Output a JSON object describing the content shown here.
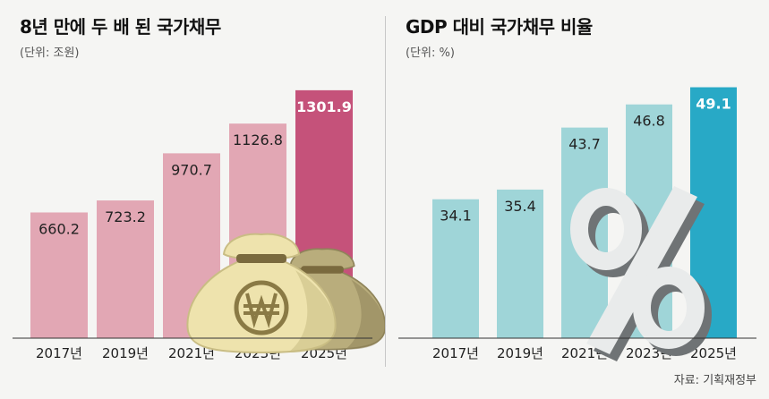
{
  "chart_data": [
    {
      "type": "bar",
      "title": "8년 만에 두 배 된 국가채무",
      "unit": "(단위: 조원)",
      "categories": [
        "2017년",
        "2019년",
        "2021년",
        "2023년",
        "2025년"
      ],
      "values": [
        660.2,
        723.2,
        970.7,
        1126.8,
        1301.9
      ],
      "ylim": [
        0,
        1400
      ],
      "grid": false,
      "legend": "none",
      "colors": {
        "bar": "#e2a7b4",
        "highlight": "#c5527a",
        "label": "#222222",
        "highlight_label": "#ffffff"
      },
      "decoration": "money-bags-icon"
    },
    {
      "type": "bar",
      "title": "GDP 대비 국가채무 비율",
      "unit": "(단위: %)",
      "categories": [
        "2017년",
        "2019년",
        "2021년",
        "2023년",
        "2025년"
      ],
      "values": [
        34.1,
        35.4,
        43.7,
        46.8,
        49.1
      ],
      "ylim": [
        15.5,
        51.2
      ],
      "grid": false,
      "legend": "none",
      "colors": {
        "bar": "#9fd5d8",
        "highlight": "#28a9c6",
        "label": "#222222",
        "highlight_label": "#ffffff"
      },
      "decoration": "percent-icon"
    }
  ],
  "source": "자료: 기획재정부"
}
